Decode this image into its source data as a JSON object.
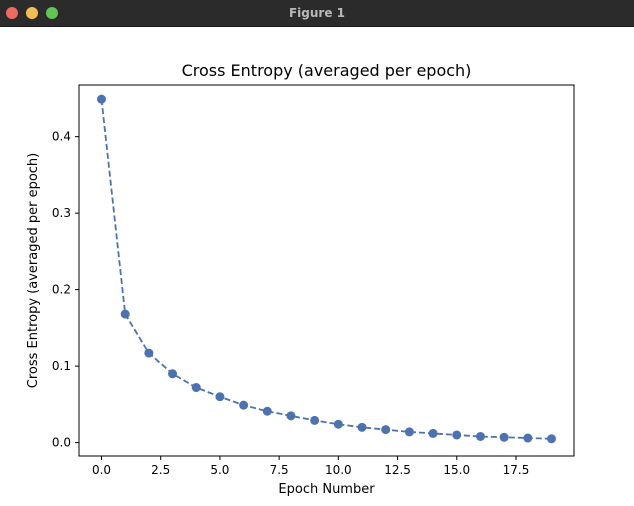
{
  "window": {
    "title": "Figure 1",
    "buttons": {
      "close_color": "#ed6a5e",
      "minimize_color": "#f5bf4f",
      "zoom_color": "#61c554"
    }
  },
  "chart_data": {
    "type": "line",
    "title": "Cross Entropy (averaged per epoch)",
    "xlabel": "Epoch Number",
    "ylabel": "Cross Entropy (averaged per epoch)",
    "xlim": [
      -0.95,
      19.95
    ],
    "ylim": [
      -0.0175,
      0.4675
    ],
    "xticks": [
      0.0,
      2.5,
      5.0,
      7.5,
      10.0,
      12.5,
      15.0,
      17.5
    ],
    "xtick_labels": [
      "0.0",
      "2.5",
      "5.0",
      "7.5",
      "10.0",
      "12.5",
      "15.0",
      "17.5"
    ],
    "yticks": [
      0.0,
      0.1,
      0.2,
      0.3,
      0.4
    ],
    "ytick_labels": [
      "0.0",
      "0.1",
      "0.2",
      "0.3",
      "0.4"
    ],
    "grid": false,
    "line_style": "dashed",
    "marker": "circle",
    "color": "#4c72b0",
    "series": [
      {
        "x": [
          0,
          1,
          2,
          3,
          4,
          5,
          6,
          7,
          8,
          9,
          10,
          11,
          12,
          13,
          14,
          15,
          16,
          17,
          18,
          19
        ],
        "values": [
          0.449,
          0.168,
          0.117,
          0.09,
          0.072,
          0.06,
          0.049,
          0.041,
          0.035,
          0.029,
          0.024,
          0.02,
          0.017,
          0.014,
          0.012,
          0.01,
          0.008,
          0.007,
          0.006,
          0.005
        ]
      }
    ]
  }
}
